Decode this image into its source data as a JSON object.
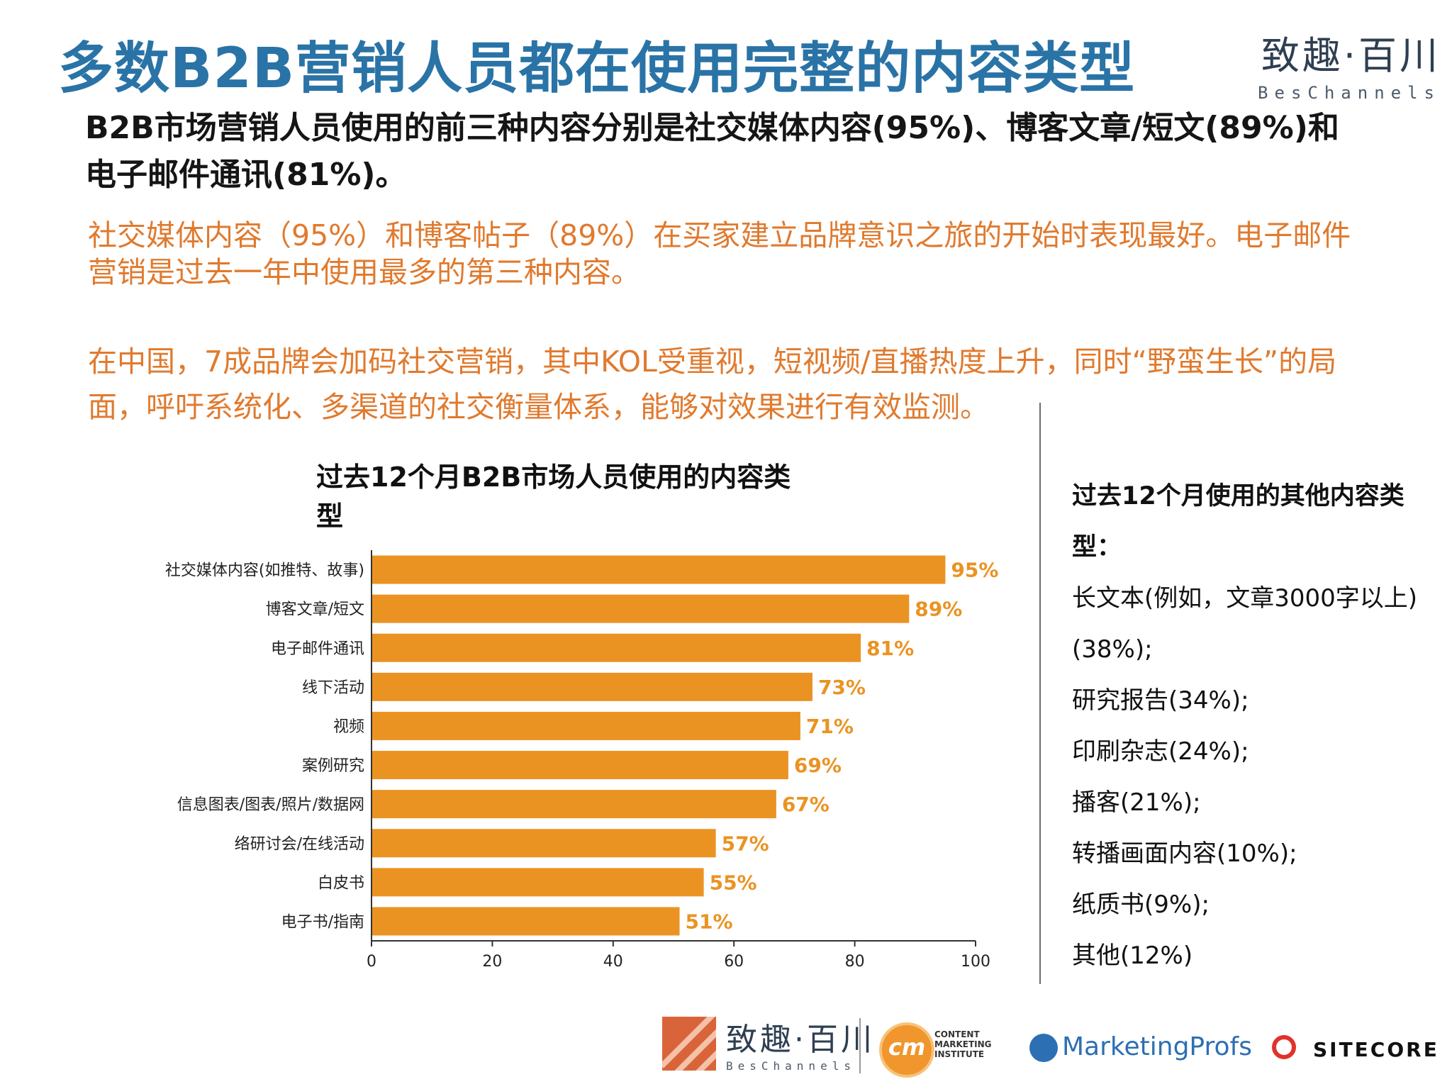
{
  "header": {
    "title": "多数B2B营销人员都在使用完整的内容类型",
    "logo_cn": "致趣·百川",
    "logo_en": "BesChannels"
  },
  "lead_text": "B2B市场营销人员使用的前三种内容分别是社交媒体内容(95%)、博客文章/短文(89%)和电子邮件通讯(81%)。",
  "orange_text_1": "社交媒体内容（95%）和博客帖子（89%）在买家建立品牌意识之旅的开始时表现最好。电子邮件营销是过去一年中使用最多的第三种内容。",
  "orange_text_2": "在中国，7成品牌会加码社交营销，其中KOL受重视，短视频/直播热度上升，同时“野蛮生长”的局面，呼吁系统化、多渠道的社交衡量体系，能够对效果进行有效监测。",
  "chart_data": {
    "type": "bar",
    "orientation": "horizontal",
    "title": "过去12个月B2B市场人员使用的内容类型",
    "categories": [
      "社交媒体内容(如推特、故事)",
      "博客文章/短文",
      "电子邮件通讯",
      "线下活动",
      "视频",
      "案例研究",
      "信息图表/图表/照片/数据网",
      "络研讨会/在线活动",
      "白皮书",
      "电子书/指南"
    ],
    "values": [
      95,
      89,
      81,
      73,
      71,
      69,
      67,
      57,
      55,
      51
    ],
    "value_labels": [
      "95%",
      "89%",
      "81%",
      "73%",
      "71%",
      "69%",
      "67%",
      "57%",
      "55%",
      "51%"
    ],
    "xlim": [
      0,
      100
    ],
    "xticks": [
      0,
      20,
      40,
      60,
      80,
      100
    ],
    "bar_color": "#ea9323",
    "label_color": "#ea9323",
    "grid": false
  },
  "side_panel": {
    "heading": "过去12个月使用的其他内容类型：",
    "items": [
      "长文本(例如，文章3000字以上)(38%);",
      "研究报告(34%);",
      "印刷杂志(24%);",
      "播客(21%);",
      "转播画面内容(10%);",
      "纸质书(9%);",
      "其他(12%)"
    ]
  },
  "footer": {
    "beschannels_cn": "致趣·百川",
    "beschannels_en": "BesChannels",
    "cmi_mark": "cm",
    "cmi_lines": [
      "CONTENT",
      "MARKETING",
      "INSTITUTE"
    ],
    "marketingprofs": "MarketingProfs",
    "sitecore": "SITECORE"
  }
}
